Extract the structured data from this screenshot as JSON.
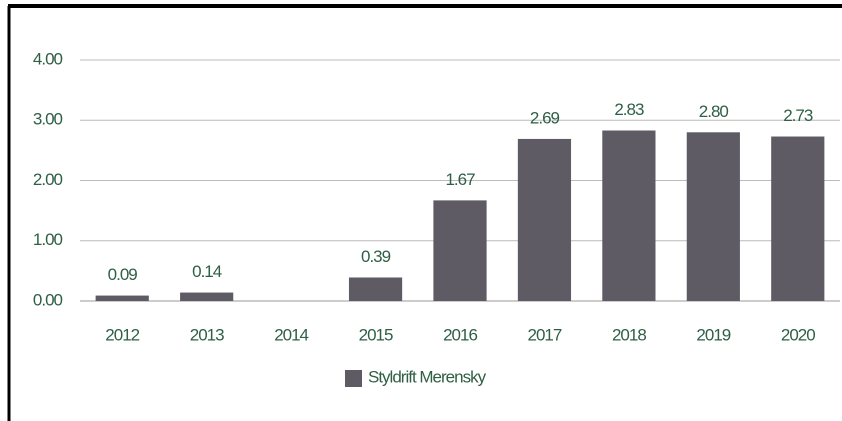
{
  "chart_data": {
    "type": "bar",
    "categories": [
      "2012",
      "2013",
      "2014",
      "2015",
      "2016",
      "2017",
      "2018",
      "2019",
      "2020"
    ],
    "series": [
      {
        "name": "Styldrift Merensky",
        "color": "#5e5b65",
        "values": [
          0.09,
          0.14,
          null,
          0.39,
          1.67,
          2.69,
          2.83,
          2.8,
          2.73
        ],
        "value_labels": [
          "0.09",
          "0.14",
          null,
          "0.39",
          "1.67",
          "2.69",
          "2.83",
          "2.80",
          "2.73"
        ]
      }
    ],
    "ylim": [
      0,
      4
    ],
    "yticks": [
      {
        "value": 0,
        "label": "0.00"
      },
      {
        "value": 1,
        "label": "1.00"
      },
      {
        "value": 2,
        "label": "2.00"
      },
      {
        "value": 3,
        "label": "3.00"
      },
      {
        "value": 4,
        "label": "4.00"
      }
    ],
    "grid": true,
    "legend": "bottom"
  }
}
